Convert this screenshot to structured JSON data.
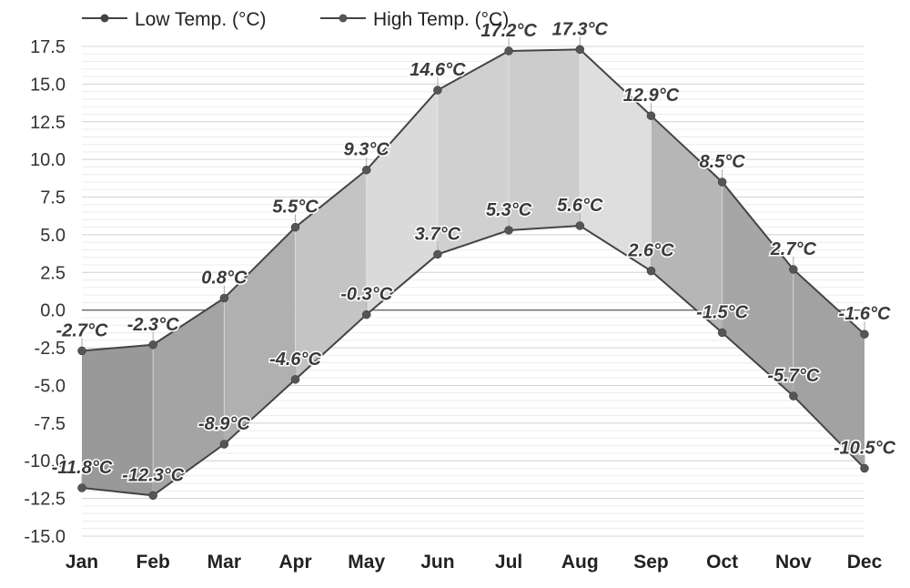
{
  "chart_data": {
    "type": "line",
    "categories": [
      "Jan",
      "Feb",
      "Mar",
      "Apr",
      "May",
      "Jun",
      "Jul",
      "Aug",
      "Sep",
      "Oct",
      "Nov",
      "Dec"
    ],
    "series": [
      {
        "name": "Low Temp. (°C)",
        "values": [
          -11.8,
          -12.3,
          -8.9,
          -4.6,
          -0.3,
          3.7,
          5.3,
          5.6,
          2.6,
          -1.5,
          -5.7,
          -10.5
        ],
        "labels": [
          "-11.8°C",
          "-12.3°C",
          "-8.9°C",
          "-4.6°C",
          "-0.3°C",
          "3.7°C",
          "5.3°C",
          "5.6°C",
          "2.6°C",
          "-1.5°C",
          "-5.7°C",
          "-10.5°C"
        ]
      },
      {
        "name": "High Temp. (°C)",
        "values": [
          -2.7,
          -2.3,
          0.8,
          5.5,
          9.3,
          14.6,
          17.2,
          17.3,
          12.9,
          8.5,
          2.7,
          -1.6
        ],
        "labels": [
          "-2.7°C",
          "-2.3°C",
          "0.8°C",
          "5.5°C",
          "9.3°C",
          "14.6°C",
          "17.2°C",
          "17.3°C",
          "12.9°C",
          "8.5°C",
          "2.7°C",
          "-1.6°C"
        ]
      }
    ],
    "ylim": [
      -15,
      17.5
    ],
    "yticks": [
      "17.5",
      "15.0",
      "12.5",
      "10.0",
      "7.5",
      "5.0",
      "2.5",
      "0.0",
      "-2.5",
      "-5.0",
      "-7.5",
      "-10.0",
      "-12.5",
      "-15.0"
    ],
    "ytick_values": [
      17.5,
      15,
      12.5,
      10,
      7.5,
      5,
      2.5,
      0,
      -2.5,
      -5,
      -7.5,
      -10,
      -12.5,
      -15
    ],
    "grid": true,
    "legend": "top-left",
    "band_colors": [
      "#999999",
      "#a4a4a4",
      "#b0b0b0",
      "#c4c4c4",
      "#dadada",
      "#d0d0d0",
      "#cccccc",
      "#dedede",
      "#b6b6b6",
      "#a6a6a6",
      "#a2a2a2"
    ],
    "line_color": "#444444",
    "point_color": "#555555"
  }
}
